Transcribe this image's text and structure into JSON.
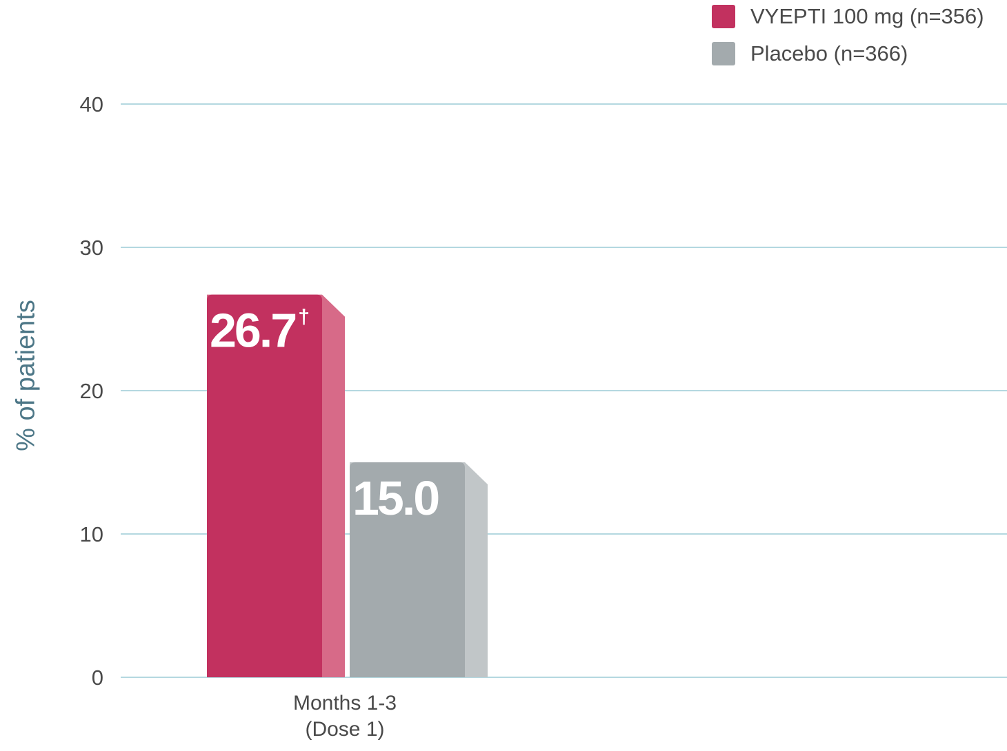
{
  "chart_data": {
    "type": "bar",
    "categories": [
      "Months 1-3 (Dose 1)"
    ],
    "category_lines": [
      "Months 1-3",
      "(Dose 1)"
    ],
    "series": [
      {
        "name": "VYEPTI 100 mg (n=356)",
        "values": [
          26.7
        ],
        "display_labels": [
          "26.7"
        ],
        "label_marker": "†",
        "color": "#c2315f",
        "side_color": "#d76a88"
      },
      {
        "name": "Placebo (n=366)",
        "values": [
          15.0
        ],
        "display_labels": [
          "15.0"
        ],
        "label_marker": "",
        "color": "#a3aaad",
        "side_color": "#c1c6c8"
      }
    ],
    "ylabel": "% of patients",
    "xlabel": "",
    "title": "",
    "ylim": [
      0,
      40
    ],
    "yticks": [
      0,
      10,
      20,
      30,
      40
    ],
    "grid": true,
    "grid_color": "#9ccbd6",
    "legend_position": "top-right"
  }
}
